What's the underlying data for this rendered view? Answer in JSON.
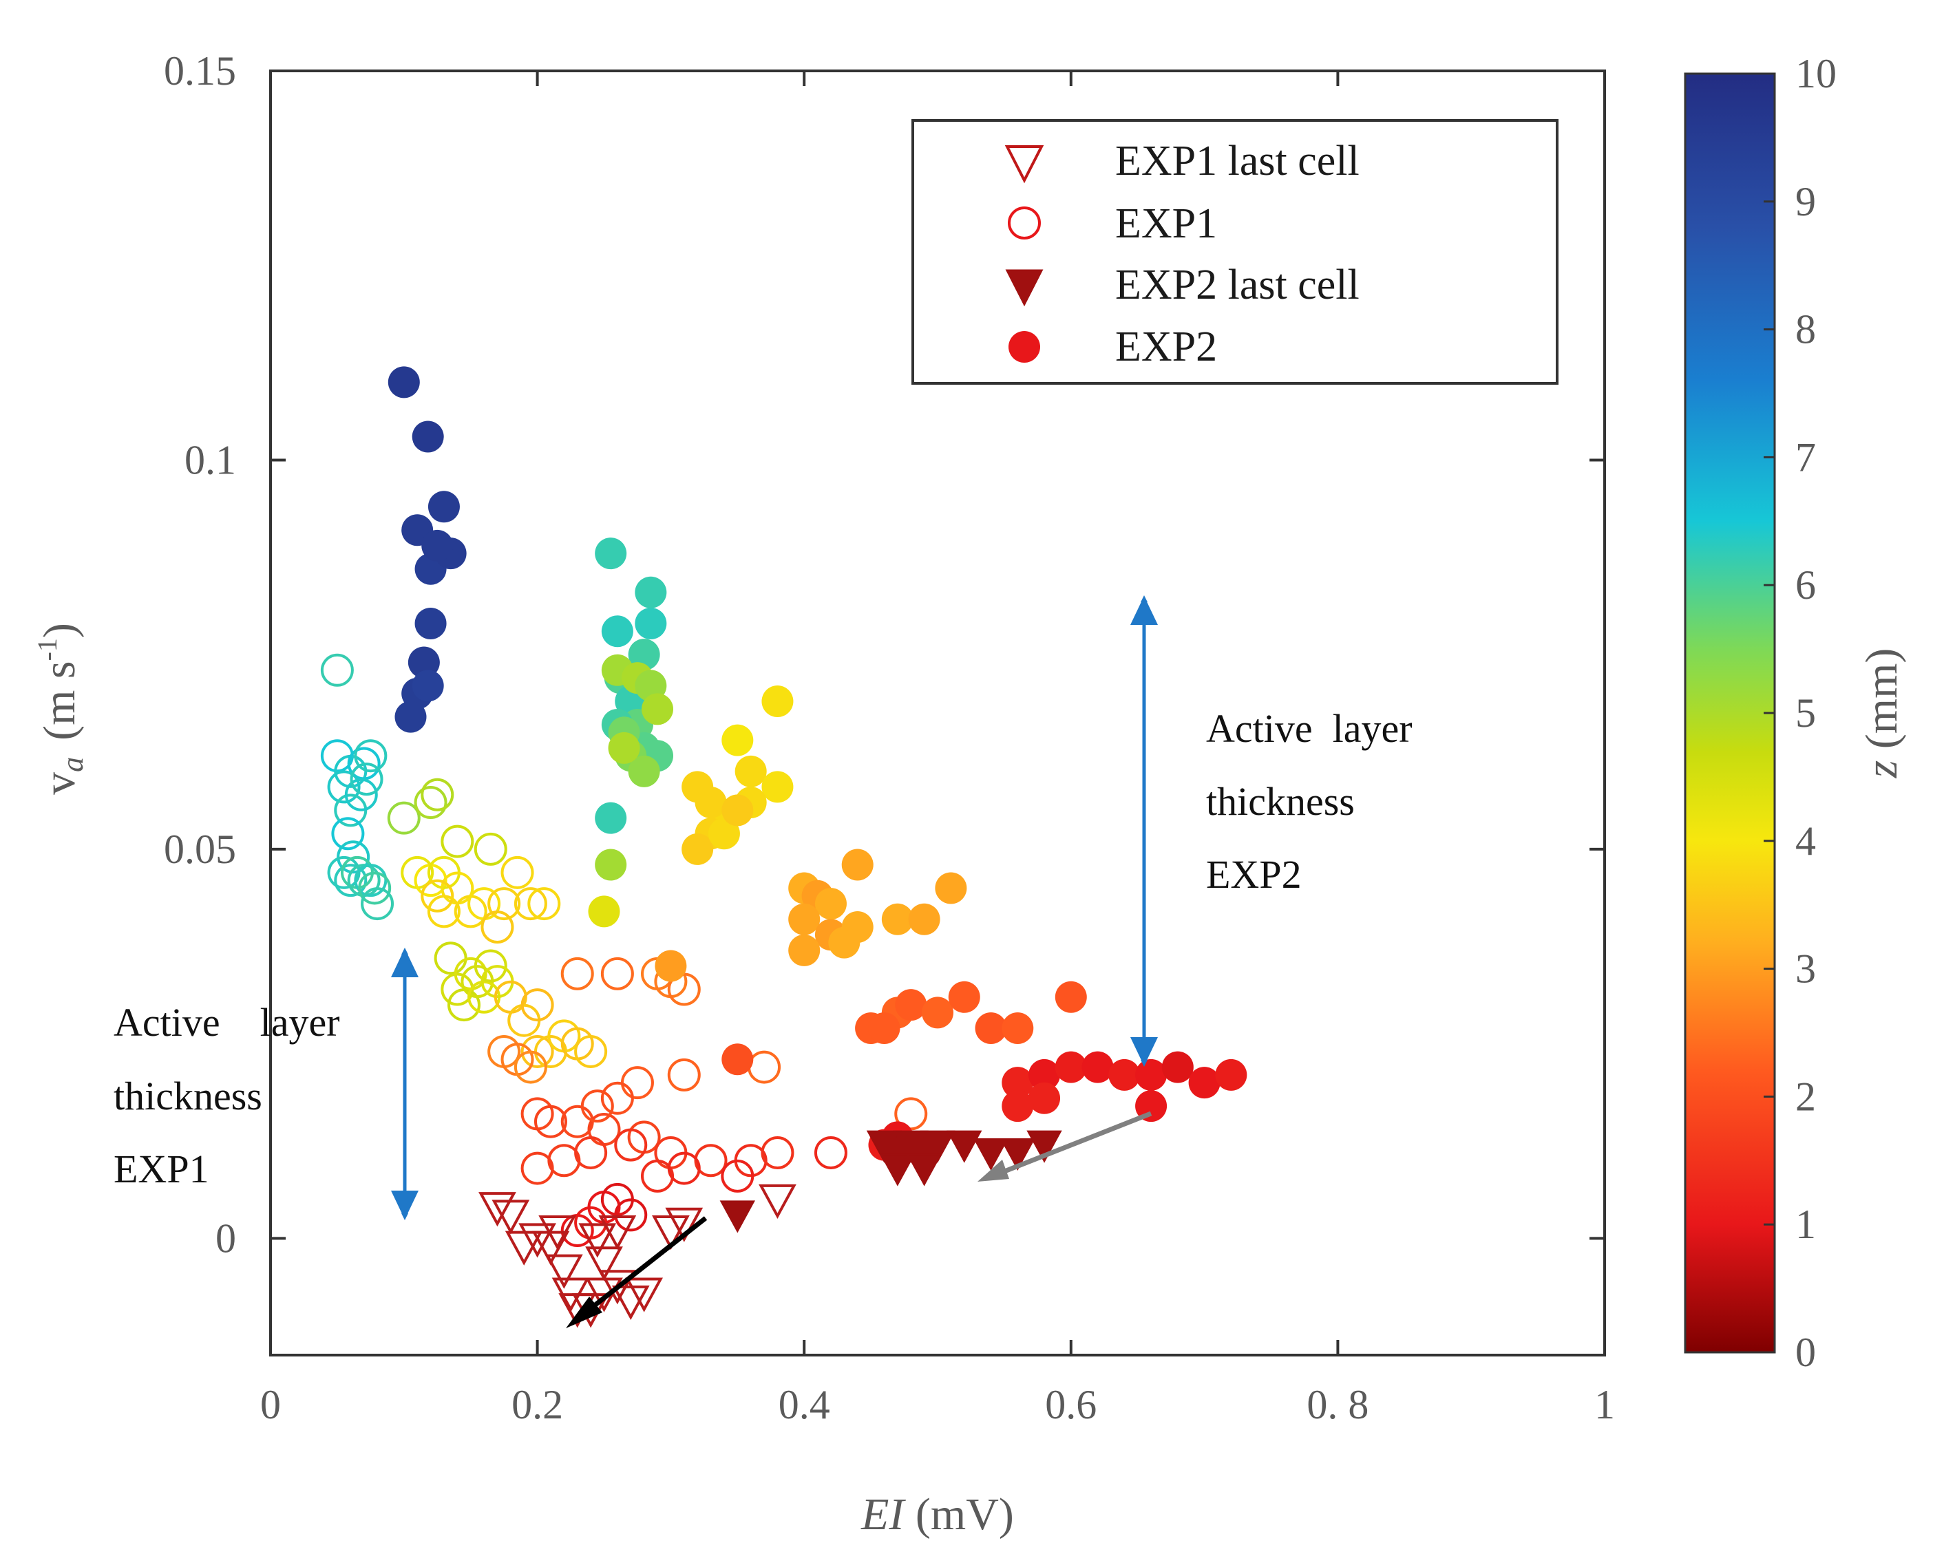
{
  "chart_data": {
    "type": "scatter",
    "xlabel_italic": "EI",
    "xlabel_rest": " (mV)",
    "ylabel_main": "v",
    "ylabel_sub": "a",
    "ylabel_unit": "(m s",
    "ylabel_sup": "-1",
    "ylabel_close": ")",
    "xlim": [
      0,
      1
    ],
    "ylim": [
      -0.015,
      0.15
    ],
    "x_ticks": [
      {
        "value": 0,
        "label": "0"
      },
      {
        "value": 0.2,
        "label": "0.2"
      },
      {
        "value": 0.4,
        "label": "0.4"
      },
      {
        "value": 0.6,
        "label": "0.6"
      },
      {
        "value": 0.8,
        "label": "0. 8"
      },
      {
        "value": 1,
        "label": "1"
      }
    ],
    "y_ticks": [
      {
        "value": 0,
        "label": "0"
      },
      {
        "value": 0.05,
        "label": "0.05"
      },
      {
        "value": 0.1,
        "label": "0.1"
      },
      {
        "value": 0.15,
        "label": "0.15"
      }
    ],
    "colorbar": {
      "label_italic": "z",
      "label_rest": " (mm)",
      "range": [
        0,
        10
      ],
      "ticks": [
        "0",
        "1",
        "2",
        "3",
        "4",
        "5",
        "6",
        "7",
        "8",
        "9",
        "10"
      ]
    },
    "legend": [
      {
        "label": "EXP1 last cell",
        "marker": "triangle-open"
      },
      {
        "label": "EXP1",
        "marker": "circle-open"
      },
      {
        "label": "EXP2 last cell",
        "marker": "triangle-filled"
      },
      {
        "label": "EXP2",
        "marker": "circle-filled"
      }
    ],
    "annotations": {
      "exp1": [
        "Active    layer",
        "thickness",
        "EXP1"
      ],
      "exp2": [
        "Active  layer",
        "thickness",
        "EXP2"
      ]
    },
    "arrow_color": "#1f78c8",
    "series": [
      {
        "name": "EXP1",
        "marker": "circle-open",
        "points": [
          [
            0.05,
            0.073,
            6.2
          ],
          [
            0.05,
            0.062,
            6.5
          ],
          [
            0.06,
            0.06,
            6.4
          ],
          [
            0.07,
            0.061,
            6.5
          ],
          [
            0.075,
            0.062,
            6.3
          ],
          [
            0.055,
            0.058,
            6.4
          ],
          [
            0.06,
            0.055,
            6.3
          ],
          [
            0.058,
            0.052,
            6.5
          ],
          [
            0.062,
            0.049,
            6.4
          ],
          [
            0.055,
            0.047,
            6.3
          ],
          [
            0.06,
            0.046,
            6.3
          ],
          [
            0.065,
            0.047,
            6.1
          ],
          [
            0.07,
            0.046,
            6.2
          ],
          [
            0.075,
            0.046,
            6.3
          ],
          [
            0.078,
            0.045,
            6.1
          ],
          [
            0.08,
            0.043,
            6.2
          ],
          [
            0.068,
            0.057,
            6.4
          ],
          [
            0.072,
            0.059,
            6.3
          ],
          [
            0.1,
            0.054,
            5.2
          ],
          [
            0.12,
            0.056,
            5.0
          ],
          [
            0.125,
            0.057,
            4.9
          ],
          [
            0.14,
            0.051,
            4.6
          ],
          [
            0.165,
            0.05,
            4.6
          ],
          [
            0.11,
            0.047,
            4.2
          ],
          [
            0.12,
            0.046,
            4.0
          ],
          [
            0.13,
            0.047,
            4.2
          ],
          [
            0.14,
            0.045,
            3.9
          ],
          [
            0.125,
            0.044,
            3.7
          ],
          [
            0.13,
            0.042,
            3.8
          ],
          [
            0.15,
            0.042,
            3.8
          ],
          [
            0.16,
            0.043,
            3.9
          ],
          [
            0.175,
            0.043,
            3.7
          ],
          [
            0.185,
            0.047,
            3.8
          ],
          [
            0.195,
            0.043,
            3.7
          ],
          [
            0.205,
            0.043,
            3.8
          ],
          [
            0.17,
            0.04,
            3.6
          ],
          [
            0.135,
            0.036,
            4.6
          ],
          [
            0.14,
            0.032,
            4.5
          ],
          [
            0.145,
            0.03,
            4.6
          ],
          [
            0.15,
            0.034,
            4.4
          ],
          [
            0.155,
            0.033,
            4.5
          ],
          [
            0.16,
            0.031,
            4.3
          ],
          [
            0.165,
            0.035,
            4.5
          ],
          [
            0.17,
            0.033,
            4.4
          ],
          [
            0.18,
            0.031,
            3.5
          ],
          [
            0.19,
            0.028,
            3.6
          ],
          [
            0.2,
            0.03,
            3.4
          ],
          [
            0.2,
            0.024,
            3.5
          ],
          [
            0.21,
            0.024,
            3.6
          ],
          [
            0.22,
            0.026,
            3.7
          ],
          [
            0.23,
            0.025,
            3.5
          ],
          [
            0.24,
            0.024,
            3.6
          ],
          [
            0.175,
            0.024,
            2.7
          ],
          [
            0.185,
            0.023,
            2.6
          ],
          [
            0.195,
            0.022,
            2.8
          ],
          [
            0.23,
            0.034,
            2.5
          ],
          [
            0.26,
            0.034,
            2.4
          ],
          [
            0.29,
            0.034,
            2.6
          ],
          [
            0.3,
            0.033,
            2.6
          ],
          [
            0.31,
            0.032,
            2.5
          ],
          [
            0.275,
            0.02,
            2.2
          ],
          [
            0.31,
            0.021,
            2.3
          ],
          [
            0.37,
            0.022,
            2.4
          ],
          [
            0.48,
            0.016,
            2.3
          ],
          [
            0.2,
            0.016,
            1.9
          ],
          [
            0.21,
            0.015,
            1.8
          ],
          [
            0.23,
            0.015,
            1.9
          ],
          [
            0.25,
            0.014,
            1.8
          ],
          [
            0.26,
            0.018,
            2.0
          ],
          [
            0.245,
            0.017,
            2.0
          ],
          [
            0.28,
            0.013,
            1.8
          ],
          [
            0.3,
            0.011,
            1.6
          ],
          [
            0.33,
            0.01,
            1.5
          ],
          [
            0.36,
            0.01,
            1.4
          ],
          [
            0.38,
            0.011,
            1.5
          ],
          [
            0.2,
            0.009,
            1.7
          ],
          [
            0.22,
            0.01,
            1.7
          ],
          [
            0.24,
            0.011,
            1.6
          ],
          [
            0.27,
            0.012,
            1.5
          ],
          [
            0.29,
            0.008,
            1.4
          ],
          [
            0.31,
            0.009,
            1.3
          ],
          [
            0.35,
            0.008,
            1.2
          ],
          [
            0.42,
            0.011,
            1.3
          ],
          [
            0.23,
            0.001,
            1.0
          ],
          [
            0.24,
            0.002,
            1.1
          ],
          [
            0.25,
            0.004,
            1.0
          ],
          [
            0.26,
            0.005,
            0.9
          ],
          [
            0.27,
            0.003,
            0.9
          ]
        ]
      },
      {
        "name": "EXP1 last cell",
        "marker": "triangle-open",
        "points": [
          [
            0.17,
            0.004,
            0.3
          ],
          [
            0.18,
            0.003,
            0.3
          ],
          [
            0.19,
            -0.001,
            0.3
          ],
          [
            0.2,
            0.0,
            0.3
          ],
          [
            0.21,
            -0.001,
            0.3
          ],
          [
            0.22,
            -0.004,
            0.3
          ],
          [
            0.225,
            -0.007,
            0.3
          ],
          [
            0.23,
            -0.009,
            0.3
          ],
          [
            0.24,
            -0.009,
            0.3
          ],
          [
            0.25,
            -0.007,
            0.3
          ],
          [
            0.26,
            -0.006,
            0.3
          ],
          [
            0.27,
            -0.008,
            0.3
          ],
          [
            0.28,
            -0.007,
            0.3
          ],
          [
            0.25,
            -0.003,
            0.3
          ],
          [
            0.26,
            0.001,
            0.3
          ],
          [
            0.3,
            0.001,
            0.3
          ],
          [
            0.31,
            0.002,
            0.3
          ],
          [
            0.38,
            0.005,
            0.3
          ],
          [
            0.215,
            0.001,
            0.3
          ],
          [
            0.245,
            0.0,
            0.3
          ]
        ]
      },
      {
        "name": "EXP2",
        "marker": "circle-filled",
        "points": [
          [
            0.1,
            0.11,
            9.6
          ],
          [
            0.118,
            0.103,
            9.6
          ],
          [
            0.11,
            0.091,
            9.5
          ],
          [
            0.12,
            0.086,
            9.4
          ],
          [
            0.13,
            0.094,
            9.5
          ],
          [
            0.135,
            0.088,
            9.5
          ],
          [
            0.125,
            0.089,
            9.5
          ],
          [
            0.12,
            0.079,
            9.4
          ],
          [
            0.115,
            0.074,
            9.5
          ],
          [
            0.11,
            0.07,
            9.4
          ],
          [
            0.105,
            0.067,
            9.4
          ],
          [
            0.118,
            0.071,
            9.3
          ],
          [
            0.255,
            0.088,
            6.2
          ],
          [
            0.26,
            0.078,
            6.3
          ],
          [
            0.262,
            0.072,
            6.0
          ],
          [
            0.27,
            0.069,
            6.2
          ],
          [
            0.28,
            0.075,
            6.1
          ],
          [
            0.285,
            0.079,
            6.3
          ],
          [
            0.285,
            0.083,
            6.2
          ],
          [
            0.275,
            0.066,
            5.8
          ],
          [
            0.28,
            0.063,
            5.9
          ],
          [
            0.29,
            0.062,
            5.9
          ],
          [
            0.26,
            0.066,
            6.1
          ],
          [
            0.265,
            0.065,
            5.6
          ],
          [
            0.27,
            0.062,
            5.5
          ],
          [
            0.28,
            0.06,
            5.3
          ],
          [
            0.265,
            0.063,
            5.0
          ],
          [
            0.26,
            0.073,
            5.1
          ],
          [
            0.275,
            0.072,
            5.0
          ],
          [
            0.285,
            0.071,
            5.2
          ],
          [
            0.29,
            0.068,
            5.0
          ],
          [
            0.255,
            0.054,
            6.2
          ],
          [
            0.255,
            0.048,
            5.1
          ],
          [
            0.25,
            0.042,
            4.3
          ],
          [
            0.35,
            0.064,
            4.0
          ],
          [
            0.38,
            0.069,
            3.9
          ],
          [
            0.36,
            0.06,
            3.8
          ],
          [
            0.38,
            0.058,
            3.9
          ],
          [
            0.32,
            0.058,
            3.7
          ],
          [
            0.34,
            0.054,
            3.8
          ],
          [
            0.33,
            0.052,
            3.7
          ],
          [
            0.32,
            0.05,
            3.6
          ],
          [
            0.34,
            0.052,
            3.8
          ],
          [
            0.33,
            0.056,
            3.7
          ],
          [
            0.36,
            0.056,
            3.8
          ],
          [
            0.35,
            0.055,
            3.6
          ],
          [
            0.44,
            0.048,
            3.1
          ],
          [
            0.4,
            0.045,
            3.2
          ],
          [
            0.41,
            0.044,
            3.0
          ],
          [
            0.42,
            0.043,
            3.2
          ],
          [
            0.4,
            0.041,
            3.1
          ],
          [
            0.42,
            0.039,
            3.0
          ],
          [
            0.4,
            0.037,
            3.1
          ],
          [
            0.44,
            0.04,
            3.2
          ],
          [
            0.47,
            0.041,
            3.2
          ],
          [
            0.49,
            0.041,
            3.1
          ],
          [
            0.51,
            0.045,
            3.1
          ],
          [
            0.43,
            0.038,
            3.2
          ],
          [
            0.3,
            0.035,
            3.0
          ],
          [
            0.45,
            0.027,
            2.2
          ],
          [
            0.47,
            0.029,
            2.3
          ],
          [
            0.48,
            0.03,
            2.2
          ],
          [
            0.5,
            0.029,
            2.3
          ],
          [
            0.46,
            0.027,
            2.2
          ],
          [
            0.52,
            0.031,
            2.2
          ],
          [
            0.54,
            0.027,
            2.1
          ],
          [
            0.56,
            0.027,
            2.2
          ],
          [
            0.6,
            0.031,
            2.1
          ],
          [
            0.35,
            0.023,
            2.0
          ],
          [
            0.56,
            0.02,
            1.2
          ],
          [
            0.58,
            0.021,
            1.0
          ],
          [
            0.6,
            0.022,
            1.1
          ],
          [
            0.62,
            0.022,
            1.0
          ],
          [
            0.64,
            0.021,
            1.1
          ],
          [
            0.66,
            0.021,
            1.0
          ],
          [
            0.68,
            0.022,
            0.9
          ],
          [
            0.7,
            0.02,
            1.0
          ],
          [
            0.72,
            0.021,
            1.1
          ],
          [
            0.66,
            0.017,
            1.0
          ],
          [
            0.58,
            0.018,
            1.2
          ],
          [
            0.56,
            0.017,
            1.2
          ],
          [
            0.46,
            0.012,
            1.1
          ],
          [
            0.47,
            0.013,
            1.0
          ]
        ]
      },
      {
        "name": "EXP2 last cell",
        "marker": "triangle-filled",
        "points": [
          [
            0.35,
            0.003,
            0.2
          ],
          [
            0.46,
            0.012,
            0.2
          ],
          [
            0.47,
            0.011,
            0.2
          ],
          [
            0.48,
            0.012,
            0.2
          ],
          [
            0.49,
            0.011,
            0.2
          ],
          [
            0.5,
            0.012,
            0.2
          ],
          [
            0.52,
            0.012,
            0.2
          ],
          [
            0.54,
            0.011,
            0.2
          ],
          [
            0.56,
            0.011,
            0.2
          ],
          [
            0.58,
            0.012,
            0.2
          ],
          [
            0.47,
            0.009,
            0.2
          ],
          [
            0.49,
            0.009,
            0.2
          ]
        ]
      }
    ]
  }
}
